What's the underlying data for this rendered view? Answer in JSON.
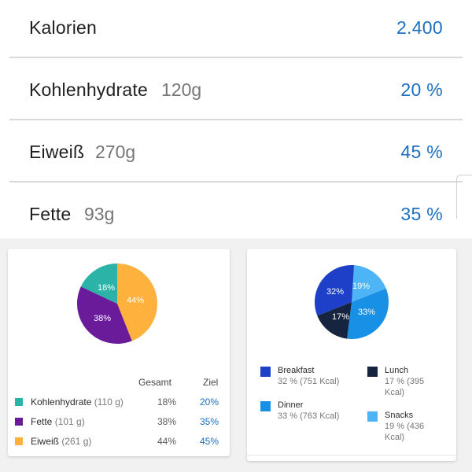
{
  "summary": {
    "calories": {
      "label": "Kalorien",
      "value": "2.400"
    },
    "carbs": {
      "label": "Kohlenhydrate",
      "amount": "120g",
      "value": "20 %"
    },
    "protein": {
      "label": "Eiweiß",
      "amount": "270g",
      "value": "45 %"
    },
    "fat": {
      "label": "Fette",
      "amount": "93g",
      "value": "35 %"
    }
  },
  "macro_card": {
    "header_total": "Gesamt",
    "header_goal": "Ziel",
    "rows": [
      {
        "name": "Kohlenhydrate",
        "grams": "(110 g)",
        "total": "18%",
        "goal": "20%",
        "color": "#2ab3a6"
      },
      {
        "name": "Fette",
        "grams": "(101 g)",
        "total": "38%",
        "goal": "35%",
        "color": "#6a1b9a"
      },
      {
        "name": "Eiweiß",
        "grams": "(261 g)",
        "total": "44%",
        "goal": "45%",
        "color": "#ffb13d"
      }
    ],
    "pie_labels": {
      "carbs": "18%",
      "fat": "38%",
      "protein": "44%"
    }
  },
  "meal_card": {
    "pie_labels": {
      "breakfast": "32%",
      "snacks": "19%",
      "dinner": "33%",
      "lunch": "17%"
    },
    "legend": [
      {
        "name": "Breakfast",
        "detail": "32 % (751 Kcal)",
        "color": "#1e40c8"
      },
      {
        "name": "Lunch",
        "detail": "17 % (395 Kcal)",
        "color": "#17243f"
      },
      {
        "name": "Dinner",
        "detail": "33 % (763 Kcal)",
        "color": "#1890e6"
      },
      {
        "name": "Snacks",
        "detail": "19 % (436 Kcal)",
        "color": "#4db4f5"
      }
    ]
  },
  "colors": {
    "accent": "#1d6fc0",
    "carbs": "#2ab3a6",
    "fat": "#6a1b9a",
    "protein": "#ffb13d",
    "breakfast": "#1e40c8",
    "lunch": "#17243f",
    "dinner": "#1890e6",
    "snacks": "#4db4f5"
  }
}
